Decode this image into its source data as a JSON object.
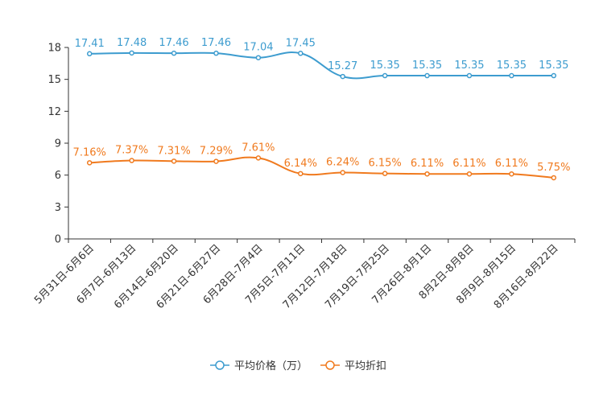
{
  "chart_data": {
    "type": "line",
    "title": "",
    "xlabel": "",
    "ylabel": "",
    "ylim": [
      0,
      18
    ],
    "yticks": [
      0,
      3,
      6,
      9,
      12,
      15,
      18
    ],
    "categories": [
      "5月31日-6月6日",
      "6月7日-6月13日",
      "6月14日-6月20日",
      "6月21日-6月27日",
      "6月28日-7月4日",
      "7月5日-7月11日",
      "7月12日-7月18日",
      "7月19日-7月25日",
      "7月26日-8月1日",
      "8月2日-8月8日",
      "8月9日-8月15日",
      "8月16日-8月22日"
    ],
    "series": [
      {
        "name": "平均价格（万）",
        "color": "#3d9ccf",
        "values": [
          17.41,
          17.48,
          17.46,
          17.46,
          17.04,
          17.45,
          15.27,
          15.35,
          15.35,
          15.35,
          15.35,
          15.35
        ],
        "labels": [
          "17.41",
          "17.48",
          "17.46",
          "17.46",
          "17.04",
          "17.45",
          "15.27",
          "15.35",
          "15.35",
          "15.35",
          "15.35",
          "15.35"
        ]
      },
      {
        "name": "平均折扣",
        "color": "#f07a1e",
        "values": [
          7.16,
          7.37,
          7.31,
          7.29,
          7.61,
          6.14,
          6.24,
          6.15,
          6.11,
          6.11,
          6.11,
          5.75
        ],
        "labels": [
          "7.16%",
          "7.37%",
          "7.31%",
          "7.29%",
          "7.61%",
          "6.14%",
          "6.24%",
          "6.15%",
          "6.11%",
          "6.11%",
          "6.11%",
          "5.75%"
        ]
      }
    ],
    "legend_position": "bottom-center",
    "grid": false
  }
}
